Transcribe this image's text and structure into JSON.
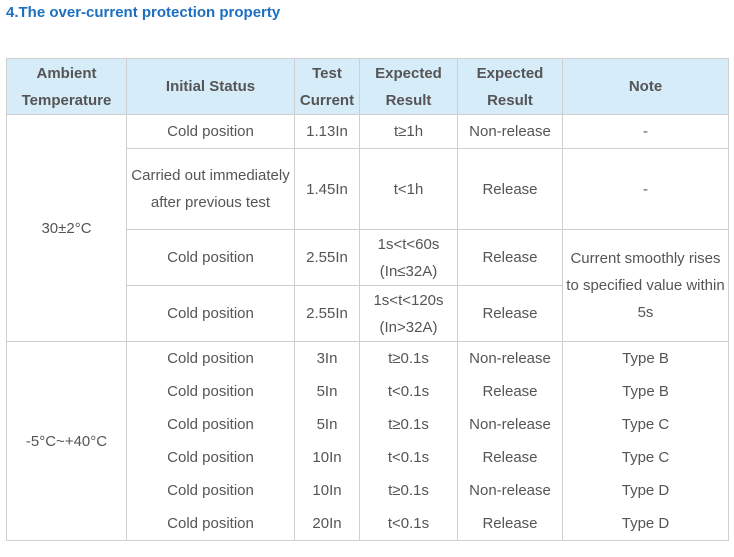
{
  "heading": "4.The over-current protection property",
  "headers": {
    "ambient": [
      "Ambient",
      "Temperature"
    ],
    "initial_status": "Initial Status",
    "test_current": [
      "Test",
      "Current"
    ],
    "expected_result_1": [
      "Expected",
      "Result"
    ],
    "expected_result_2": [
      "Expected",
      "Result"
    ],
    "note": "Note"
  },
  "group1": {
    "temperature": "30±2°C",
    "note_merged": "Current smoothly rises to specified value within 5s",
    "rows": [
      {
        "initial": "Cold position",
        "current": "1.13In",
        "exp1": "t≥1h",
        "exp2": "Non-release",
        "note": "-"
      },
      {
        "initial": "Carried out immediately after previous test",
        "current": "1.45In",
        "exp1": "t<1h",
        "exp2": "Release",
        "note": "-"
      },
      {
        "initial": "Cold position",
        "current": "2.55In",
        "exp1": "1s<t<60s (In≤32A)",
        "exp2": "Release"
      },
      {
        "initial": "Cold position",
        "current": "2.55In",
        "exp1": "1s<t<120s (In>32A)",
        "exp2": "Release"
      }
    ]
  },
  "group2": {
    "temperature": "-5°C~+40°C",
    "rows": [
      {
        "initial": "Cold position",
        "current": "3In",
        "exp1": "t≥0.1s",
        "exp2": "Non-release",
        "note": "Type B"
      },
      {
        "initial": "Cold position",
        "current": "5In",
        "exp1": "t<0.1s",
        "exp2": "Release",
        "note": "Type B"
      },
      {
        "initial": "Cold position",
        "current": "5In",
        "exp1": "t≥0.1s",
        "exp2": "Non-release",
        "note": "Type C"
      },
      {
        "initial": "Cold position",
        "current": "10In",
        "exp1": "t<0.1s",
        "exp2": "Release",
        "note": "Type C"
      },
      {
        "initial": "Cold position",
        "current": "10In",
        "exp1": "t≥0.1s",
        "exp2": "Non-release",
        "note": "Type D"
      },
      {
        "initial": "Cold position",
        "current": "20In",
        "exp1": "t<0.1s",
        "exp2": "Release",
        "note": "Type D"
      }
    ]
  }
}
